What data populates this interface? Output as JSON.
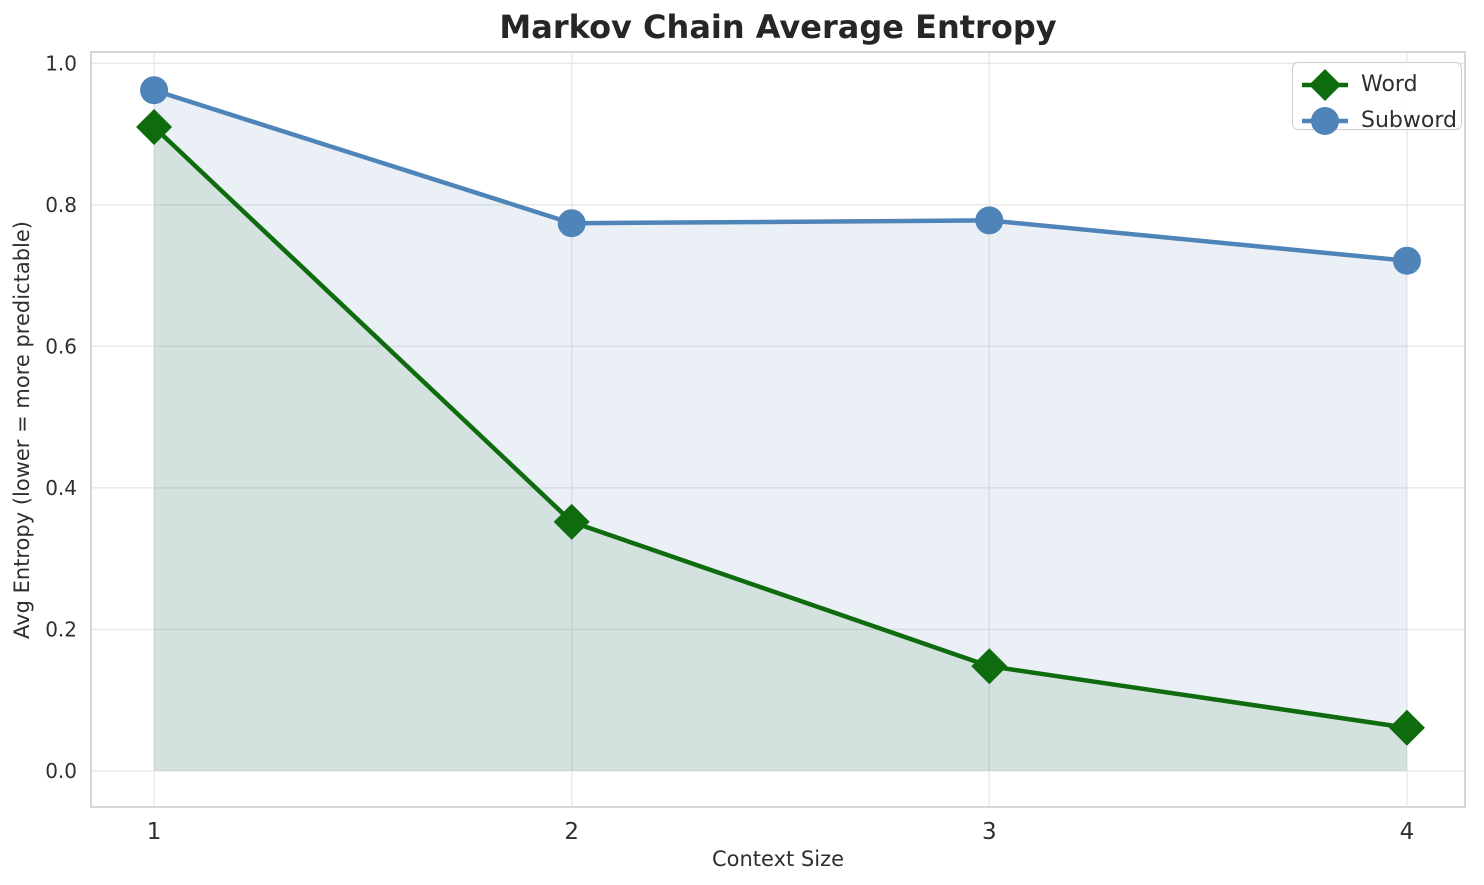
{
  "title": "Markov Chain Average Entropy",
  "chart_data": {
    "type": "line",
    "title": "Markov Chain Average Entropy",
    "xlabel": "Context Size",
    "ylabel": "Avg Entropy (lower = more predictable)",
    "x": [
      1,
      2,
      3,
      4
    ],
    "series": [
      {
        "name": "Word",
        "marker": "diamond",
        "color": "#0e6b0e",
        "fill_to_zero": true,
        "fill_opacity": 0.11,
        "values": [
          0.91,
          0.352,
          0.148,
          0.061
        ]
      },
      {
        "name": "Subword",
        "marker": "circle",
        "color": "#4f84b8",
        "fill_to_zero": true,
        "fill_opacity": 0.12,
        "values": [
          0.962,
          0.774,
          0.778,
          0.721
        ]
      }
    ],
    "xtick_values": [
      1,
      2,
      3,
      4
    ],
    "xtick_labels": [
      "1",
      "2",
      "3",
      "4"
    ],
    "ytick_values": [
      0.0,
      0.2,
      0.4,
      0.6,
      0.8,
      1.0
    ],
    "ytick_labels": [
      "0.0",
      "0.2",
      "0.4",
      "0.6",
      "0.8",
      "1.0"
    ],
    "xlim": [
      0.849,
      4.139
    ],
    "ylim": [
      -0.051,
      1.016
    ],
    "grid": true,
    "legend_position": "top-right",
    "legend_entries": [
      "Word",
      "Subword"
    ]
  },
  "style": {
    "grid_color": "#e9e9e9",
    "spine_color": "#d6d6d6",
    "tick_color": "#2f2f2f",
    "title_color": "#262626",
    "background": "#ffffff",
    "line_width": 4.5,
    "circle_radius": 14,
    "diamond_half": 18,
    "xtick_font": 23,
    "ytick_font": 20
  }
}
